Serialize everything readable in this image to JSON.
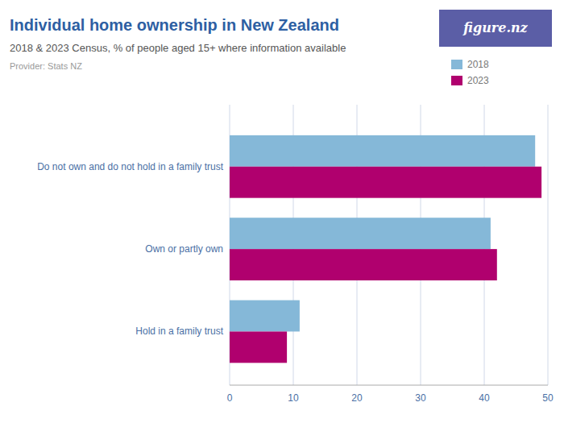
{
  "chart_data": {
    "type": "bar",
    "orientation": "horizontal",
    "title": "Individual home ownership in New Zealand",
    "subtitle": "2018 & 2023 Census, % of people aged 15+ where information available",
    "annotations": [
      "Provider: Stats NZ",
      "figure.nz"
    ],
    "categories": [
      "Do not own and do not hold in a family trust",
      "Own or partly own",
      "Hold in a family trust"
    ],
    "series": [
      {
        "name": "2018",
        "color": "#85b8d8",
        "values": [
          48.0,
          41.0,
          11.0
        ]
      },
      {
        "name": "2023",
        "color": "#b0006e",
        "values": [
          49.0,
          42.0,
          9.0
        ]
      }
    ],
    "xlim": [
      0,
      50
    ],
    "xticks": [
      0,
      10,
      20,
      30,
      40,
      50
    ],
    "grid": true,
    "legend": "upper right"
  }
}
